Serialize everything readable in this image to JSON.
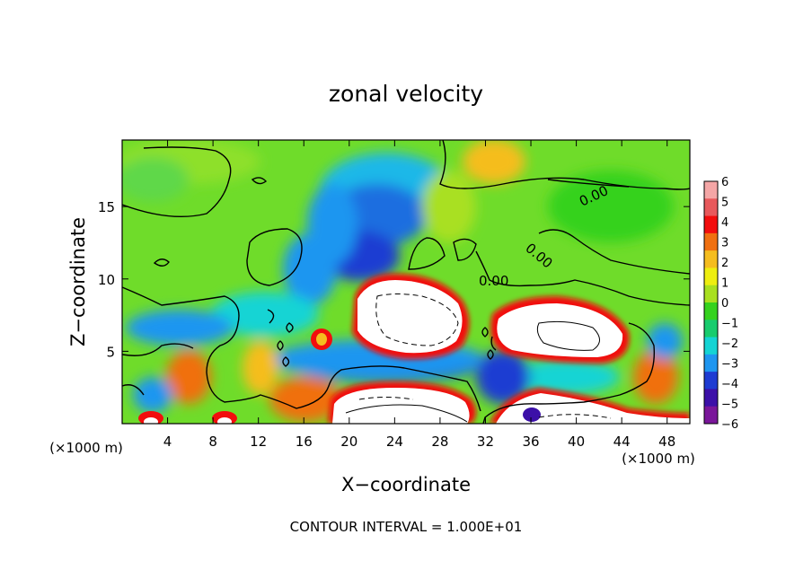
{
  "chart_data": {
    "type": "heatmap",
    "title": "zonal velocity",
    "xlabel": "X−coordinate",
    "ylabel": "Z−coordinate",
    "x_unit_label": "(×1000 m)",
    "x_unit_label_right": "(×1000 m)",
    "xlim": [
      0,
      50
    ],
    "ylim": [
      0,
      19.6
    ],
    "x_ticks": [
      4,
      8,
      12,
      16,
      20,
      24,
      28,
      32,
      36,
      40,
      44,
      48
    ],
    "y_ticks": [
      5,
      10,
      15
    ],
    "colorbar": {
      "ticks": [
        6,
        5,
        4,
        3,
        2,
        1,
        0,
        -1,
        -2,
        -3,
        -4,
        -5,
        -6
      ],
      "tick_labels": [
        "6",
        "5",
        "4",
        "3",
        "2",
        "1",
        "0",
        "−1",
        "−2",
        "−3",
        "−4",
        "−5",
        "−6"
      ],
      "range": [
        -6,
        6
      ],
      "colors_top_to_bottom": [
        "#f4a6a6",
        "#e8595c",
        "#f20d0d",
        "#f07010",
        "#f5bd1f",
        "#eeee10",
        "#a9e020",
        "#35d21e",
        "#18cc6e",
        "#14d4d4",
        "#1e96f0",
        "#1e3cd2",
        "#3c10a8",
        "#7a169a"
      ]
    },
    "contour_labels": [
      "0.00",
      "0.00",
      "0.00"
    ],
    "features": [
      {
        "kind": "positive_max",
        "x_range": [
          18,
          31
        ],
        "z_range": [
          6,
          10.5
        ]
      },
      {
        "kind": "positive_max",
        "x_range": [
          32.5,
          44.5
        ],
        "z_range": [
          4.5,
          8
        ]
      },
      {
        "kind": "positive_max",
        "x_range": [
          18,
          30.5
        ],
        "z_range": [
          0,
          2.5
        ]
      },
      {
        "kind": "positive_max",
        "x_range": [
          33,
          50
        ],
        "z_range": [
          0,
          3
        ]
      },
      {
        "kind": "negative_core",
        "x_range": [
          20,
          30
        ],
        "z_range": [
          10,
          17.5
        ]
      }
    ],
    "grid": false,
    "legend": "right colorbar"
  },
  "footer": "CONTOUR INTERVAL = 1.000E+01"
}
